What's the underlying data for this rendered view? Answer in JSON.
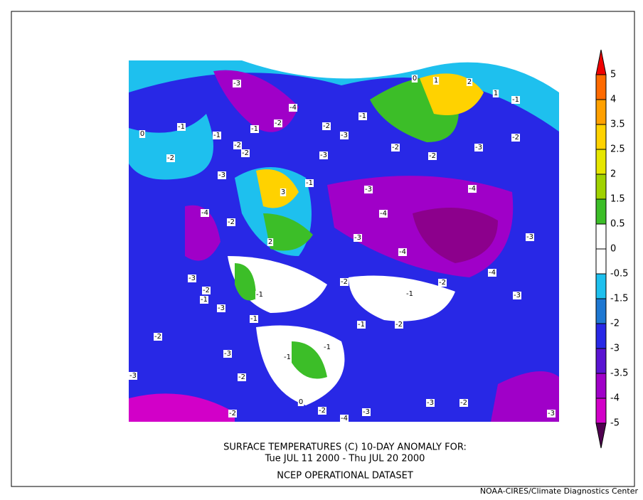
{
  "map": {
    "title": "SURFACE TEMPERATURES (C)   10-DAY ANOMALY FOR:",
    "period": "Tue JUL 11 2000 - Thu JUL 20 2000",
    "dataset": "NCEP OPERATIONAL DATASET",
    "credit": "NOAA-CIRES/Climate Diagnostics Center",
    "colorbar": {
      "levels": [
        5,
        4,
        3.5,
        2.5,
        2,
        1.5,
        0.5,
        0,
        -0.5,
        -1.5,
        -2,
        -3,
        -3.5,
        -4,
        -5
      ],
      "colors": [
        "#f00000",
        "#ff6a00",
        "#ffa000",
        "#ffd200",
        "#e6e600",
        "#a0d200",
        "#3cbe28",
        "#ffffff",
        "#ffffff",
        "#1ec0ee",
        "#1e78d2",
        "#2828e6",
        "#5a14d2",
        "#a000c8",
        "#d200c8",
        "#8c008c",
        "#500050"
      ]
    },
    "contour_labels": [
      "-3",
      "-4",
      "-1",
      "-1",
      "-1",
      "-2",
      "-2",
      "-3",
      "-1",
      "-2",
      "-2",
      "-3",
      "-2",
      "-2",
      "-2",
      "-3",
      "-2",
      "-3",
      "-1",
      "-3",
      "-4",
      "-4",
      "-2",
      "-4",
      "-3",
      "-4",
      "-3",
      "-4",
      "-3",
      "-2",
      "-1",
      "-3",
      "-1",
      "-2",
      "-1",
      "-2",
      "-3",
      "-1",
      "-1",
      "-2",
      "-2",
      "-3",
      "-1",
      "-1",
      "-2",
      "-3",
      "-2",
      "-2",
      "-4",
      "-3",
      "-3",
      "-2",
      "-3",
      "3",
      "2",
      "-1",
      "1",
      "1",
      "0",
      "2",
      "0",
      "0"
    ]
  }
}
